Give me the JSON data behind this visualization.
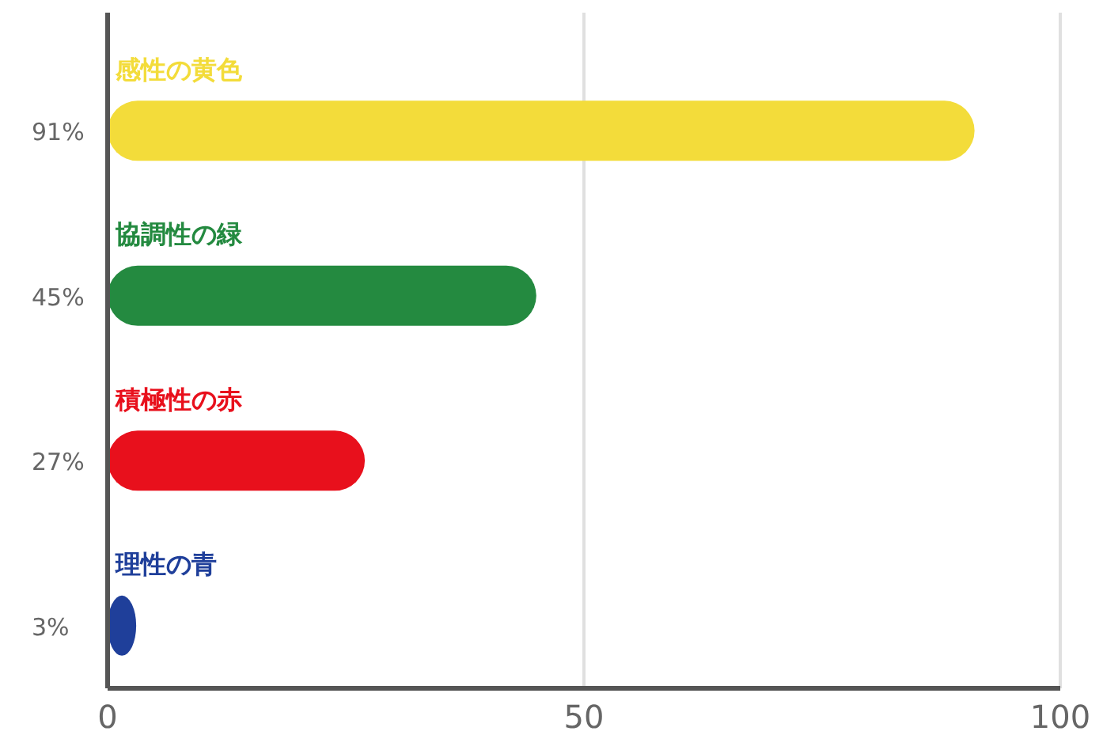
{
  "chart_data": {
    "type": "bar",
    "orientation": "horizontal",
    "categories": [
      "感性の黄色",
      "協調性の緑",
      "積極性の赤",
      "理性の青"
    ],
    "values": [
      91,
      45,
      27,
      3
    ],
    "colors": [
      "#f3dc3a",
      "#248a40",
      "#e8101c",
      "#1f3f9a"
    ],
    "value_labels": [
      "91%",
      "45%",
      "27%",
      "3%"
    ],
    "xlim": [
      0,
      100
    ],
    "xticks": [
      0,
      50,
      100
    ],
    "grid": "x"
  }
}
